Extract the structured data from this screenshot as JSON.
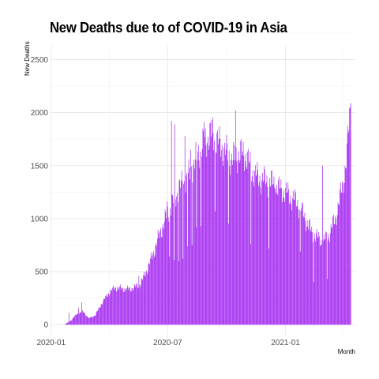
{
  "chart_data": {
    "type": "bar",
    "title": "New Deaths due to of COVID-19 in Asia",
    "xlabel": "Month",
    "ylabel": "New Deaths",
    "bar_color": "#a020f0",
    "grid": true,
    "ylim": [
      -95,
      2630
    ],
    "xlim": [
      "2019-12-31",
      "2021-04-20"
    ],
    "y_ticks": [
      0,
      500,
      1000,
      1500,
      2000,
      2500
    ],
    "x_ticks": [
      {
        "date": "2020-01-01",
        "label": "2020-01"
      },
      {
        "date": "2020-07-01",
        "label": "2020-07"
      },
      {
        "date": "2021-01-01",
        "label": "2021-01"
      }
    ],
    "x_minor_dates": [
      "2020-04-01",
      "2020-10-01",
      "2021-04-01"
    ],
    "series": [
      {
        "start_date": "2020-01-23",
        "end_date": "2021-04-13",
        "anchors": [
          [
            "2020-01-23",
            5
          ],
          [
            "2020-02-01",
            40
          ],
          [
            "2020-02-10",
            100
          ],
          [
            "2020-02-20",
            125
          ],
          [
            "2020-02-29",
            60
          ],
          [
            "2020-03-10",
            90
          ],
          [
            "2020-03-20",
            200
          ],
          [
            "2020-03-31",
            300
          ],
          [
            "2020-04-10",
            350
          ],
          [
            "2020-04-20",
            340
          ],
          [
            "2020-05-01",
            335
          ],
          [
            "2020-05-10",
            350
          ],
          [
            "2020-05-20",
            390
          ],
          [
            "2020-06-01",
            550
          ],
          [
            "2020-06-10",
            700
          ],
          [
            "2020-06-20",
            880
          ],
          [
            "2020-07-01",
            1050
          ],
          [
            "2020-07-10",
            1160
          ],
          [
            "2020-07-20",
            1300
          ],
          [
            "2020-08-01",
            1380
          ],
          [
            "2020-08-10",
            1500
          ],
          [
            "2020-08-20",
            1650
          ],
          [
            "2020-09-01",
            1760
          ],
          [
            "2020-09-10",
            1800
          ],
          [
            "2020-09-20",
            1700
          ],
          [
            "2020-10-01",
            1620
          ],
          [
            "2020-10-10",
            1560
          ],
          [
            "2020-10-20",
            1610
          ],
          [
            "2020-10-31",
            1600
          ],
          [
            "2020-11-10",
            1450
          ],
          [
            "2020-11-20",
            1380
          ],
          [
            "2020-12-01",
            1360
          ],
          [
            "2020-12-10",
            1340
          ],
          [
            "2020-12-20",
            1290
          ],
          [
            "2021-01-01",
            1250
          ],
          [
            "2021-01-10",
            1200
          ],
          [
            "2021-01-20",
            1150
          ],
          [
            "2021-02-01",
            1000
          ],
          [
            "2021-02-10",
            880
          ],
          [
            "2021-02-20",
            820
          ],
          [
            "2021-03-01",
            780
          ],
          [
            "2021-03-10",
            850
          ],
          [
            "2021-03-20",
            1000
          ],
          [
            "2021-03-31",
            1300
          ],
          [
            "2021-04-06",
            1550
          ],
          [
            "2021-04-13",
            2080
          ]
        ],
        "spikes": [
          [
            "2020-01-29",
            110
          ],
          [
            "2020-02-13",
            160
          ],
          [
            "2020-02-18",
            210
          ],
          [
            "2020-05-17",
            460
          ],
          [
            "2020-06-30",
            1160
          ],
          [
            "2020-07-07",
            1920
          ],
          [
            "2020-07-12",
            1890
          ],
          [
            "2020-07-28",
            1780
          ],
          [
            "2020-08-06",
            1650
          ],
          [
            "2020-08-27",
            1910
          ],
          [
            "2020-09-08",
            1930
          ],
          [
            "2020-10-15",
            2020
          ],
          [
            "2020-10-24",
            1750
          ],
          [
            "2020-12-16",
            1280
          ],
          [
            "2021-01-26",
            1100
          ],
          [
            "2021-02-28",
            1500
          ],
          [
            "2021-04-13",
            2090
          ]
        ],
        "gaps": [
          [
            "2020-07-04",
            0.6
          ],
          [
            "2020-07-11",
            0.5
          ],
          [
            "2020-07-18",
            0.5
          ],
          [
            "2020-07-25",
            0.5
          ],
          [
            "2020-08-01",
            0.55
          ],
          [
            "2020-08-08",
            0.55
          ],
          [
            "2020-08-15",
            0.55
          ],
          [
            "2020-08-22",
            0.55
          ],
          [
            "2020-09-13",
            0.6
          ],
          [
            "2020-10-04",
            0.6
          ],
          [
            "2020-11-08",
            0.5
          ],
          [
            "2020-12-06",
            0.55
          ],
          [
            "2021-01-24",
            0.6
          ],
          [
            "2021-02-14",
            0.5
          ],
          [
            "2021-03-07",
            0.55
          ]
        ]
      }
    ]
  }
}
